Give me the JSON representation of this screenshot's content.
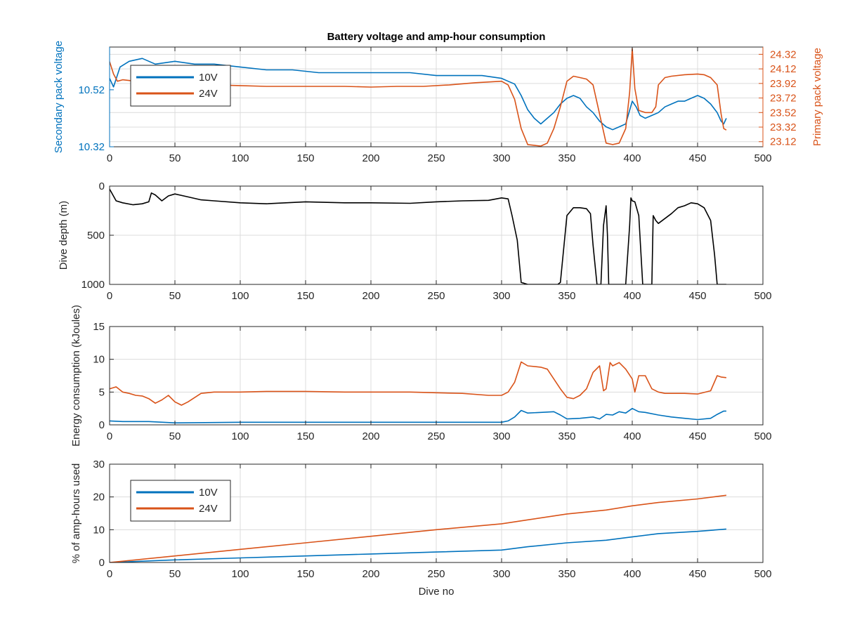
{
  "figure": {
    "title": "Battery voltage and amp-hour consumption"
  },
  "colors": {
    "blue": "#0072BD",
    "orange": "#D95319",
    "black": "#000000",
    "axis": "#262626",
    "grid": "#dcdcdc"
  },
  "chart_data": [
    {
      "type": "line",
      "title": "Battery voltage and amp-hour consumption",
      "xlabel": "",
      "xlim": [
        0,
        500
      ],
      "xticks": [
        0,
        50,
        100,
        150,
        200,
        250,
        300,
        350,
        400,
        450,
        500
      ],
      "ylabel_left": "Secondary pack voltage",
      "ylim_left": [
        10.32,
        10.67
      ],
      "yticks_left": [
        10.32,
        10.52
      ],
      "ylabel_right": "Primary pack voltage",
      "ylim_right": [
        23.05,
        24.42
      ],
      "yticks_right": [
        23.12,
        23.32,
        23.52,
        23.72,
        23.92,
        24.12,
        24.32
      ],
      "grid": true,
      "legend": {
        "placement": "top-left",
        "entries": [
          "10V",
          "24V"
        ]
      },
      "series": [
        {
          "name": "10V",
          "axis": "left",
          "color": "blue",
          "x": [
            0,
            3,
            8,
            15,
            25,
            35,
            50,
            65,
            80,
            100,
            120,
            140,
            160,
            180,
            200,
            215,
            230,
            250,
            270,
            285,
            300,
            305,
            310,
            315,
            320,
            325,
            330,
            335,
            340,
            345,
            350,
            355,
            360,
            365,
            370,
            375,
            380,
            385,
            390,
            395,
            400,
            403,
            406,
            410,
            415,
            420,
            425,
            430,
            435,
            440,
            445,
            450,
            455,
            460,
            465,
            468,
            470,
            472
          ],
          "y": [
            10.56,
            10.53,
            10.6,
            10.62,
            10.63,
            10.61,
            10.62,
            10.61,
            10.61,
            10.6,
            10.59,
            10.59,
            10.58,
            10.58,
            10.58,
            10.58,
            10.58,
            10.57,
            10.57,
            10.57,
            10.56,
            10.55,
            10.54,
            10.5,
            10.45,
            10.42,
            10.4,
            10.42,
            10.44,
            10.47,
            10.49,
            10.5,
            10.49,
            10.46,
            10.44,
            10.41,
            10.39,
            10.38,
            10.39,
            10.4,
            10.48,
            10.46,
            10.43,
            10.42,
            10.43,
            10.44,
            10.46,
            10.47,
            10.48,
            10.48,
            10.49,
            10.5,
            10.49,
            10.47,
            10.44,
            10.41,
            10.4,
            10.42
          ]
        },
        {
          "name": "24V",
          "axis": "right",
          "color": "orange",
          "x": [
            0,
            3,
            6,
            10,
            20,
            40,
            60,
            80,
            100,
            120,
            140,
            160,
            180,
            200,
            220,
            240,
            260,
            280,
            300,
            305,
            310,
            315,
            320,
            330,
            335,
            340,
            345,
            350,
            355,
            360,
            365,
            370,
            375,
            380,
            385,
            390,
            395,
            398,
            400,
            402,
            405,
            410,
            415,
            418,
            420,
            425,
            430,
            440,
            450,
            455,
            460,
            465,
            468,
            470,
            472
          ],
          "y": [
            24.22,
            24.05,
            23.95,
            23.97,
            23.95,
            23.93,
            23.91,
            23.9,
            23.89,
            23.88,
            23.88,
            23.88,
            23.88,
            23.87,
            23.88,
            23.88,
            23.9,
            23.93,
            23.95,
            23.9,
            23.7,
            23.3,
            23.08,
            23.06,
            23.1,
            23.3,
            23.6,
            23.95,
            24.02,
            24.0,
            23.98,
            23.9,
            23.5,
            23.1,
            23.08,
            23.1,
            23.3,
            23.8,
            24.4,
            23.85,
            23.55,
            23.52,
            23.52,
            23.6,
            23.9,
            24.0,
            24.02,
            24.04,
            24.05,
            24.04,
            24.0,
            23.9,
            23.5,
            23.3,
            23.28
          ]
        }
      ]
    },
    {
      "type": "line",
      "xlabel": "",
      "ylabel": "Dive depth (m)",
      "xlim": [
        0,
        500
      ],
      "ylim": [
        0,
        1000
      ],
      "y_reversed": true,
      "xticks": [
        0,
        50,
        100,
        150,
        200,
        250,
        300,
        350,
        400,
        450,
        500
      ],
      "yticks": [
        0,
        500,
        1000
      ],
      "grid": true,
      "series": [
        {
          "color": "black",
          "x": [
            0,
            5,
            10,
            18,
            25,
            30,
            32,
            35,
            40,
            45,
            50,
            60,
            70,
            80,
            100,
            120,
            150,
            180,
            200,
            230,
            250,
            270,
            290,
            300,
            305,
            308,
            312,
            315,
            320,
            330,
            340,
            343,
            345,
            350,
            355,
            360,
            365,
            368,
            370,
            373,
            376,
            378,
            380,
            381,
            382,
            385,
            390,
            395,
            398,
            399,
            400,
            402,
            405,
            408,
            410,
            415,
            416,
            418,
            420,
            425,
            430,
            435,
            440,
            445,
            450,
            455,
            460,
            463,
            465,
            470,
            472
          ],
          "y": [
            30,
            150,
            170,
            190,
            180,
            160,
            70,
            90,
            150,
            100,
            80,
            110,
            140,
            150,
            170,
            180,
            160,
            170,
            170,
            175,
            160,
            150,
            145,
            120,
            130,
            300,
            550,
            980,
            1000,
            1000,
            1000,
            1000,
            980,
            300,
            220,
            220,
            230,
            280,
            600,
            1000,
            1000,
            400,
            200,
            500,
            1000,
            1000,
            1000,
            1000,
            400,
            120,
            150,
            160,
            300,
            1000,
            1000,
            1000,
            300,
            350,
            380,
            330,
            280,
            220,
            200,
            170,
            180,
            220,
            350,
            700,
            1000,
            1000,
            1000
          ]
        }
      ]
    },
    {
      "type": "line",
      "xlabel": "",
      "ylabel": "Energy consumption (kJoules)",
      "xlim": [
        0,
        500
      ],
      "ylim": [
        0,
        15
      ],
      "xticks": [
        0,
        50,
        100,
        150,
        200,
        250,
        300,
        350,
        400,
        450,
        500
      ],
      "yticks": [
        0,
        5,
        10,
        15
      ],
      "grid": true,
      "series": [
        {
          "color": "orange",
          "x": [
            0,
            5,
            10,
            15,
            20,
            25,
            30,
            35,
            40,
            45,
            50,
            55,
            60,
            70,
            80,
            100,
            120,
            150,
            180,
            200,
            205,
            210,
            230,
            250,
            270,
            290,
            300,
            305,
            310,
            315,
            320,
            330,
            335,
            340,
            345,
            350,
            355,
            360,
            365,
            370,
            375,
            378,
            380,
            383,
            385,
            390,
            395,
            400,
            402,
            405,
            410,
            415,
            420,
            425,
            430,
            440,
            450,
            460,
            465,
            468,
            472
          ],
          "y": [
            5.5,
            5.8,
            5.0,
            4.8,
            4.5,
            4.4,
            4.0,
            3.3,
            3.8,
            4.5,
            3.5,
            3.0,
            3.5,
            4.8,
            5.0,
            5.0,
            5.1,
            5.1,
            5.0,
            5.0,
            5.0,
            5.0,
            5.0,
            4.9,
            4.8,
            4.5,
            4.5,
            5.0,
            6.5,
            9.6,
            9.0,
            8.8,
            8.5,
            7.0,
            5.5,
            4.2,
            4.0,
            4.5,
            5.5,
            8.0,
            9.0,
            5.2,
            5.5,
            9.5,
            9.0,
            9.5,
            8.5,
            7.0,
            5.0,
            7.5,
            7.5,
            5.5,
            5.0,
            4.8,
            4.8,
            4.8,
            4.7,
            5.2,
            7.5,
            7.3,
            7.2
          ]
        },
        {
          "color": "blue",
          "x": [
            0,
            10,
            30,
            50,
            100,
            150,
            200,
            250,
            300,
            305,
            310,
            315,
            320,
            330,
            340,
            345,
            350,
            360,
            370,
            375,
            380,
            385,
            390,
            395,
            400,
            405,
            410,
            420,
            430,
            440,
            450,
            460,
            465,
            470,
            472
          ],
          "y": [
            0.6,
            0.5,
            0.5,
            0.3,
            0.4,
            0.4,
            0.4,
            0.4,
            0.4,
            0.6,
            1.2,
            2.2,
            1.8,
            1.9,
            2.0,
            1.5,
            0.9,
            1.0,
            1.2,
            0.9,
            1.6,
            1.5,
            2.0,
            1.8,
            2.5,
            2.0,
            1.9,
            1.5,
            1.2,
            1.0,
            0.8,
            1.0,
            1.6,
            2.1,
            2.1
          ]
        }
      ]
    },
    {
      "type": "line",
      "xlabel": "Dive no",
      "ylabel": "% of amp-hours used",
      "xlim": [
        0,
        500
      ],
      "ylim": [
        0,
        30
      ],
      "xticks": [
        0,
        50,
        100,
        150,
        200,
        250,
        300,
        350,
        400,
        450,
        500
      ],
      "yticks": [
        0,
        10,
        20,
        30
      ],
      "grid": true,
      "legend": {
        "placement": "top-left",
        "entries": [
          "10V",
          "24V"
        ]
      },
      "series": [
        {
          "name": "10V",
          "color": "blue",
          "x": [
            0,
            50,
            100,
            150,
            200,
            250,
            300,
            320,
            350,
            380,
            400,
            420,
            450,
            472
          ],
          "y": [
            0,
            0.8,
            1.4,
            2.0,
            2.6,
            3.2,
            3.8,
            4.8,
            6.0,
            6.8,
            7.8,
            8.8,
            9.5,
            10.2
          ],
          "labels": []
        },
        {
          "name": "24V",
          "color": "orange",
          "x": [
            0,
            50,
            100,
            150,
            200,
            250,
            300,
            320,
            350,
            380,
            400,
            420,
            450,
            472
          ],
          "y": [
            0,
            2.0,
            4.0,
            6.0,
            8.0,
            10.0,
            11.8,
            13.0,
            14.8,
            16.0,
            17.3,
            18.3,
            19.4,
            20.5
          ]
        }
      ]
    }
  ]
}
